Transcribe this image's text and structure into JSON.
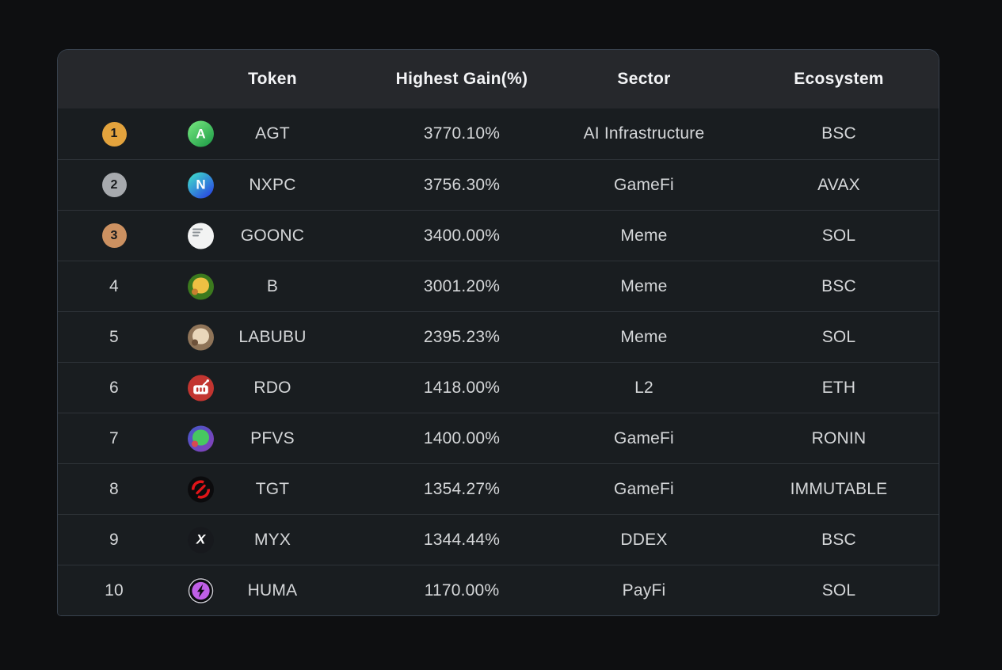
{
  "table": {
    "header": {
      "rank": "",
      "token": "Token",
      "gain": "Highest Gain(%)",
      "sector": "Sector",
      "ecosystem": "Ecosystem"
    },
    "rows": [
      {
        "rank": "1",
        "badge": "gold",
        "token": "AGT",
        "gain": "3770.10%",
        "sector": "AI Infrastructure",
        "ecosystem": "BSC",
        "icon": {
          "name": "agt-token-icon",
          "style": "letter",
          "bg": "linear-gradient(140deg,#74e67e 5%,#23a04a 90%)",
          "glyph": "A",
          "color": "#ffffff"
        }
      },
      {
        "rank": "2",
        "badge": "silver",
        "token": "NXPC",
        "gain": "3756.30%",
        "sector": "GameFi",
        "ecosystem": "AVAX",
        "icon": {
          "name": "nxpc-token-icon",
          "style": "letter",
          "bg": "linear-gradient(140deg,#3fe0cb 5%,#2b50e0 85%)",
          "glyph": "N",
          "color": "#ffffff"
        }
      },
      {
        "rank": "3",
        "badge": "bronze",
        "token": "GOONC",
        "gain": "3400.00%",
        "sector": "Meme",
        "ecosystem": "SOL",
        "icon": {
          "name": "goonc-token-icon",
          "style": "tweet",
          "bg": "#f2f3f3",
          "color": "#8a9096"
        }
      },
      {
        "rank": "4",
        "badge": null,
        "token": "B",
        "gain": "3001.20%",
        "sector": "Meme",
        "ecosystem": "BSC",
        "icon": {
          "name": "b-token-icon",
          "style": "blob",
          "bg": "#3c7a1e",
          "blob": "#efc043",
          "accent": "#c87f2f"
        }
      },
      {
        "rank": "5",
        "badge": null,
        "token": "LABUBU",
        "gain": "2395.23%",
        "sector": "Meme",
        "ecosystem": "SOL",
        "icon": {
          "name": "labubu-token-icon",
          "style": "blob",
          "bg": "#8f7458",
          "blob": "#e9d6ba",
          "accent": "#6e523a"
        }
      },
      {
        "rank": "6",
        "badge": null,
        "token": "RDO",
        "gain": "1418.00%",
        "sector": "L2",
        "ecosystem": "ETH",
        "icon": {
          "name": "rdo-token-icon",
          "style": "radio",
          "bg": "#c23530",
          "color": "#ffffff"
        }
      },
      {
        "rank": "7",
        "badge": null,
        "token": "PFVS",
        "gain": "1400.00%",
        "sector": "GameFi",
        "ecosystem": "RONIN",
        "icon": {
          "name": "pfvs-token-icon",
          "style": "blob",
          "bg": "linear-gradient(135deg,#4158c8,#8a3fb8)",
          "blob": "#47c860",
          "accent": "#d84a52"
        }
      },
      {
        "rank": "8",
        "badge": null,
        "token": "TGT",
        "gain": "1354.27%",
        "sector": "GameFi",
        "ecosystem": "IMMUTABLE",
        "icon": {
          "name": "tgt-token-icon",
          "style": "arrows",
          "bg": "#0b0b0d",
          "color": "#e01418"
        }
      },
      {
        "rank": "9",
        "badge": null,
        "token": "MYX",
        "gain": "1344.44%",
        "sector": "DDEX",
        "ecosystem": "BSC",
        "icon": {
          "name": "myx-token-icon",
          "style": "letter",
          "bg": "#17191d",
          "glyph": "X",
          "color": "#ffffff",
          "italic": true
        }
      },
      {
        "rank": "10",
        "badge": null,
        "token": "HUMA",
        "gain": "1170.00%",
        "sector": "PayFi",
        "ecosystem": "SOL",
        "icon": {
          "name": "huma-token-icon",
          "style": "bolt",
          "bg": "#0c0c10",
          "ring": "#caccd2",
          "inner": "#bf5fe6",
          "color": "#0c0c10"
        }
      }
    ]
  },
  "colors": {
    "page_bg": "#0e0f11",
    "card_bg": "#191d20",
    "header_bg": "#26282c",
    "divider": "#2e3338",
    "header_text": "#f3f4f6",
    "cell_text": "#d5d7d9",
    "badge_text": "#181a1c",
    "badge_gold": "#e3a33d",
    "badge_silver": "#a7aaae",
    "badge_bronze": "#cc9161"
  }
}
